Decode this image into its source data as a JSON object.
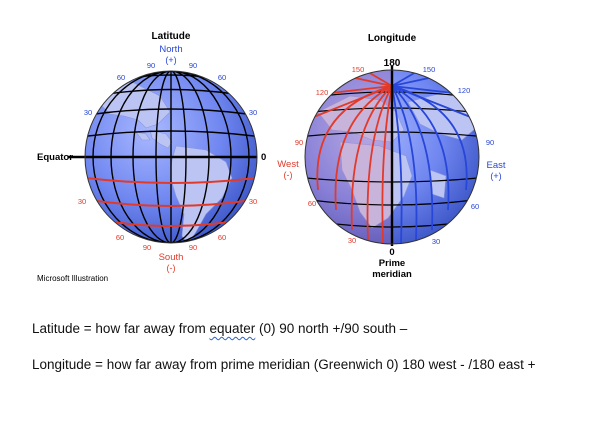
{
  "diagram": {
    "latitude_globe": {
      "title": "Latitude",
      "pole_north": "North",
      "pole_north_sign": "(+)",
      "pole_south": "South",
      "pole_south_sign": "(-)",
      "equator_label": "Equator",
      "equator_value": "0",
      "north_degrees": [
        "90",
        "90",
        "60",
        "60",
        "30",
        "30"
      ],
      "south_degrees": [
        "30",
        "30",
        "60",
        "60",
        "90",
        "90"
      ]
    },
    "longitude_globe": {
      "title": "Longitude",
      "top_value": "180",
      "west_label": "West",
      "west_sign": "(-)",
      "east_label": "East",
      "east_sign": "(+)",
      "bottom_value": "0",
      "prime_label_1": "Prime",
      "prime_label_2": "meridian",
      "west_degrees": [
        "150",
        "120",
        "90",
        "60",
        "30"
      ],
      "east_degrees": [
        "150",
        "120",
        "90",
        "60",
        "30"
      ]
    },
    "credit": "Microsoft Illustration"
  },
  "text": {
    "line1_start": "Latitude = how far away from ",
    "line1_marked": "equater",
    "line1_end": " (0)  90 north +/90 south –",
    "line2": "Longitude = how far away from prime meridian (Greenwich 0) 180 west - /180 east +"
  },
  "colors": {
    "ocean": "#6f86f0",
    "land": "#b9c2f2",
    "grid": "#000000",
    "latitude_lines": "#e23a2a",
    "west_lines": "#e23a2a",
    "east_lines": "#2846d8",
    "label_blue": "#2846d8",
    "label_red": "#e23a2a"
  }
}
